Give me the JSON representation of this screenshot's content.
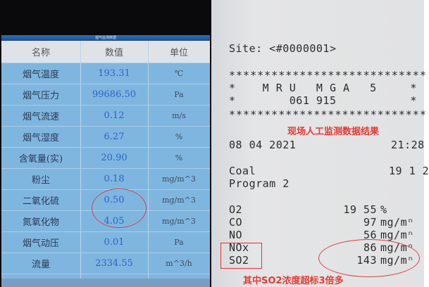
{
  "monitor_screen": {
    "title": "烟气监测数据",
    "headers": [
      "名称",
      "数值",
      "单位"
    ],
    "rows": [
      {
        "name": "烟气温度",
        "value": "193.31",
        "unit": "℃"
      },
      {
        "name": "烟气压力",
        "value": "99686.50",
        "unit": "Pa"
      },
      {
        "name": "烟气流速",
        "value": "0.12",
        "unit": "m/s"
      },
      {
        "name": "烟气湿度",
        "value": "6.27",
        "unit": "%"
      },
      {
        "name": "含氧量(实)",
        "value": "20.90",
        "unit": "%"
      },
      {
        "name": "粉尘",
        "value": "0.18",
        "unit": "mg/m^3"
      },
      {
        "name": "二氧化硫",
        "value": "0.50",
        "unit": "mg/m^3"
      },
      {
        "name": "氮氧化物",
        "value": "4.05",
        "unit": "mg/m^3"
      },
      {
        "name": "烟气动压",
        "value": "0.01",
        "unit": "Pa"
      },
      {
        "name": "流量",
        "value": "2334.55",
        "unit": "m^3/h"
      }
    ]
  },
  "printout": {
    "site": "Site: <#0000001>",
    "stars": "****************************",
    "device": "*    M R U   M G A   5     *",
    "serial": "*        061 915           *",
    "caption_top": "现场人工监测数据结果",
    "date": "08 04 2021",
    "time": "21:28",
    "fuel": "Coal",
    "fuel_value": "19 1 2",
    "program": "Program 2",
    "readings": [
      {
        "name": "O2",
        "value": "19 55",
        "unit": "%"
      },
      {
        "name": "CO",
        "value": "97",
        "unit": "mg/mⁿ"
      },
      {
        "name": "NO",
        "value": "56",
        "unit": "mg/mⁿ"
      },
      {
        "name": "NOx",
        "value": "86",
        "unit": "mg/mⁿ"
      },
      {
        "name": "SO2",
        "value": "143",
        "unit": "mg/mⁿ"
      }
    ],
    "caption_bottom": "其中SO2浓度超标3倍多"
  },
  "colors": {
    "annotation": "#e53935",
    "screen_value": "#2d62c8",
    "table_bg": "#7fb6e0"
  }
}
